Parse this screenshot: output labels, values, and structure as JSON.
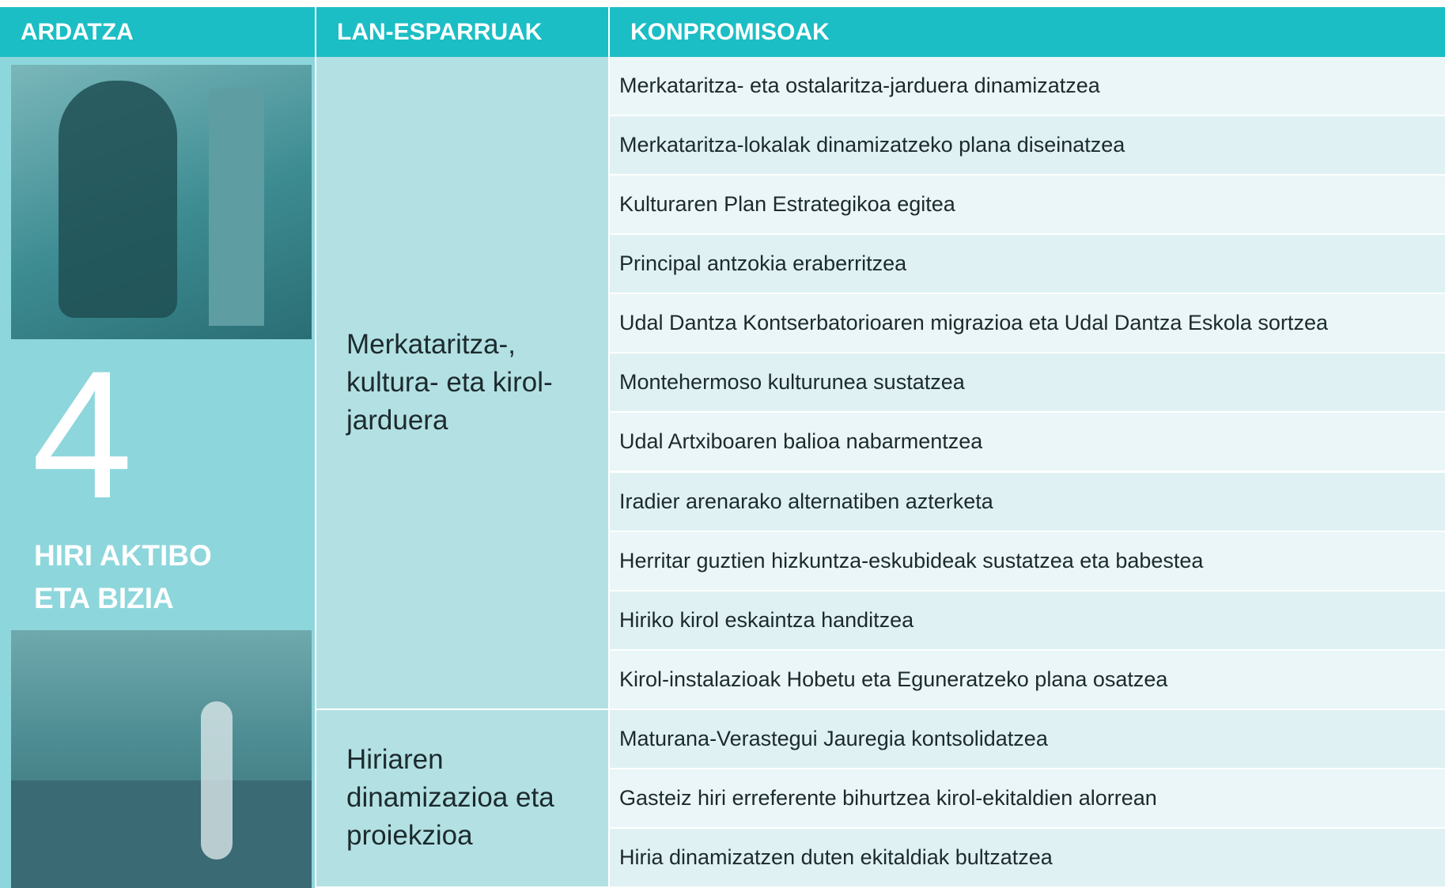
{
  "header": {
    "columns": [
      "ARDATZA",
      "LAN-ESPARRUAK",
      "KONPROMISOAK"
    ]
  },
  "axis": {
    "number": "4",
    "title_lines": [
      "HIRI AKTIBO",
      "ETA BIZIA"
    ]
  },
  "areas": [
    {
      "label": "Merkataritza-, kultura- eta kirol-jarduera",
      "commitments": [
        "Merkataritza- eta ostalaritza-jarduera dinamizatzea",
        "Merkataritza-lokalak dinamizatzeko plana diseinatzea",
        "Kulturaren Plan Estrategikoa egitea",
        "Principal antzokia eraberritzea",
        "Udal Dantza Kontserbatorioaren migrazioa eta Udal Dantza Eskola sortzea",
        "Montehermoso kulturunea sustatzea",
        "Udal Artxiboaren balioa nabarmentzea",
        "Iradier arenarako alternatiben azterketa",
        "Herritar guztien hizkuntza-eskubideak sustatzea eta babestea",
        "Hiriko kirol eskaintza handitzea",
        "Kirol-instalazioak Hobetu eta Eguneratzeko plana osatzea"
      ]
    },
    {
      "label": "Hiriaren dinamizazioa eta proiekzioa",
      "commitments": [
        "Maturana-Verastegui Jauregia kontsolidatzea",
        "Gasteiz hiri erreferente bihurtzea kirol-ekitaldien alorrean",
        "Hiria dinamizatzen duten ekitaldiak bultzatzea"
      ]
    }
  ]
}
